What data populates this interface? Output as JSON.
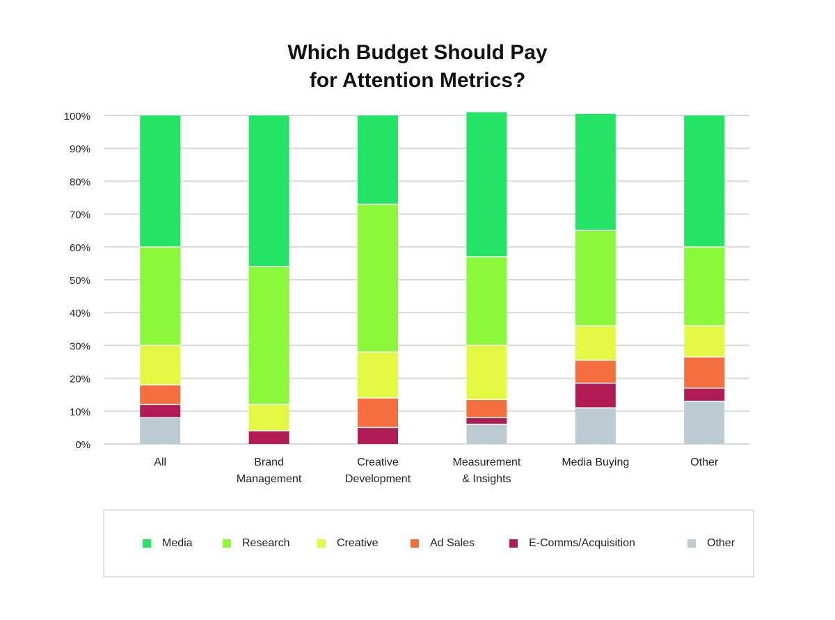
{
  "chart_data": {
    "type": "bar",
    "stacked": true,
    "title": [
      "Which Budget Should Pay",
      "for Attention Metrics?"
    ],
    "categories": [
      [
        "All"
      ],
      [
        "Brand",
        "Management"
      ],
      [
        "Creative",
        "Development"
      ],
      [
        "Measurement",
        "& Insights"
      ],
      [
        "Media Buying"
      ],
      [
        "Other"
      ]
    ],
    "ylim": [
      0,
      100
    ],
    "yticks": [
      "0%",
      "10%",
      "20%",
      "30%",
      "40%",
      "50%",
      "60%",
      "70%",
      "80%",
      "90%",
      "100%"
    ],
    "grid": true,
    "legend_position": "bottom",
    "series": [
      {
        "name": "Other",
        "color": "#bccbd2",
        "values": [
          8,
          0,
          0,
          6,
          11,
          13
        ]
      },
      {
        "name": "E-Comms/Acquisition",
        "color": "#b11c54",
        "values": [
          4,
          4,
          5,
          2,
          7.5,
          4
        ]
      },
      {
        "name": "Ad Sales",
        "color": "#f46e3e",
        "values": [
          6,
          0,
          9,
          5.5,
          7,
          9.5
        ]
      },
      {
        "name": "Creative",
        "color": "#e3f843",
        "values": [
          12,
          8,
          14,
          16.5,
          10.5,
          9.5
        ]
      },
      {
        "name": "Research",
        "color": "#8cf83a",
        "values": [
          30,
          42,
          45,
          27,
          29,
          24
        ]
      },
      {
        "name": "Media",
        "color": "#24e465",
        "values": [
          40,
          46,
          27,
          44,
          35.5,
          40
        ]
      }
    ],
    "legend_order": [
      "Media",
      "Research",
      "Creative",
      "Ad Sales",
      "E-Comms/Acquisition",
      "Other"
    ]
  }
}
